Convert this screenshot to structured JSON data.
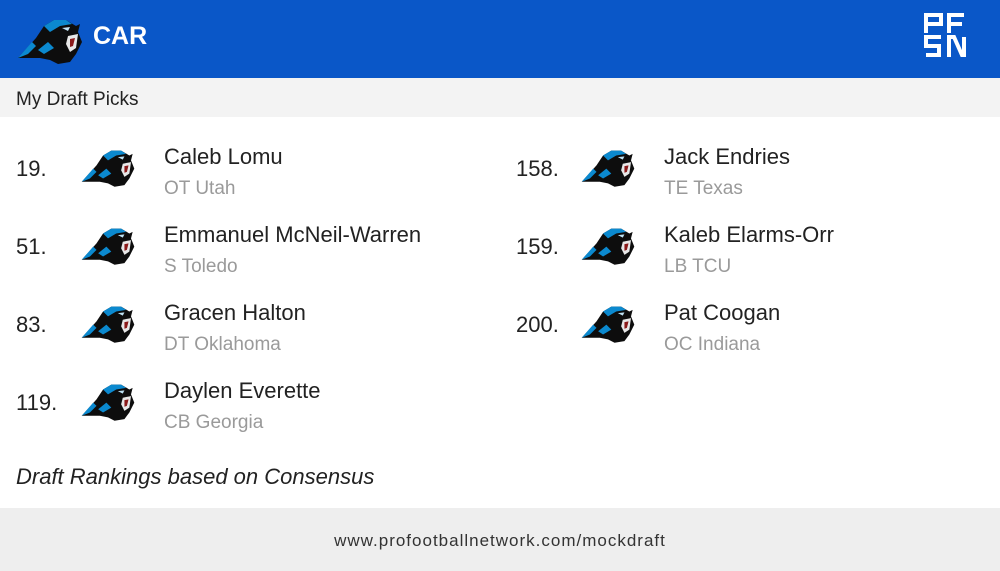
{
  "header": {
    "team_abbr": "CAR",
    "brand_color": "#0a57c8",
    "brand_logo": "PFSN",
    "team_logo": "panther-logo"
  },
  "section_title": "My Draft Picks",
  "picks": [
    {
      "number": "19.",
      "name": "Caleb Lomu",
      "position": "OT Utah"
    },
    {
      "number": "51.",
      "name": "Emmanuel McNeil-Warren",
      "position": "S Toledo"
    },
    {
      "number": "83.",
      "name": "Gracen Halton",
      "position": "DT Oklahoma"
    },
    {
      "number": "119.",
      "name": "Daylen Everette",
      "position": "CB Georgia"
    },
    {
      "number": "158.",
      "name": "Jack Endries",
      "position": "TE Texas"
    },
    {
      "number": "159.",
      "name": "Kaleb Elarms-Orr",
      "position": "LB TCU"
    },
    {
      "number": "200.",
      "name": "Pat Coogan",
      "position": "OC Indiana"
    }
  ],
  "note": "Draft Rankings based on Consensus",
  "footer_url": "www.profootballnetwork.com/mockdraft"
}
